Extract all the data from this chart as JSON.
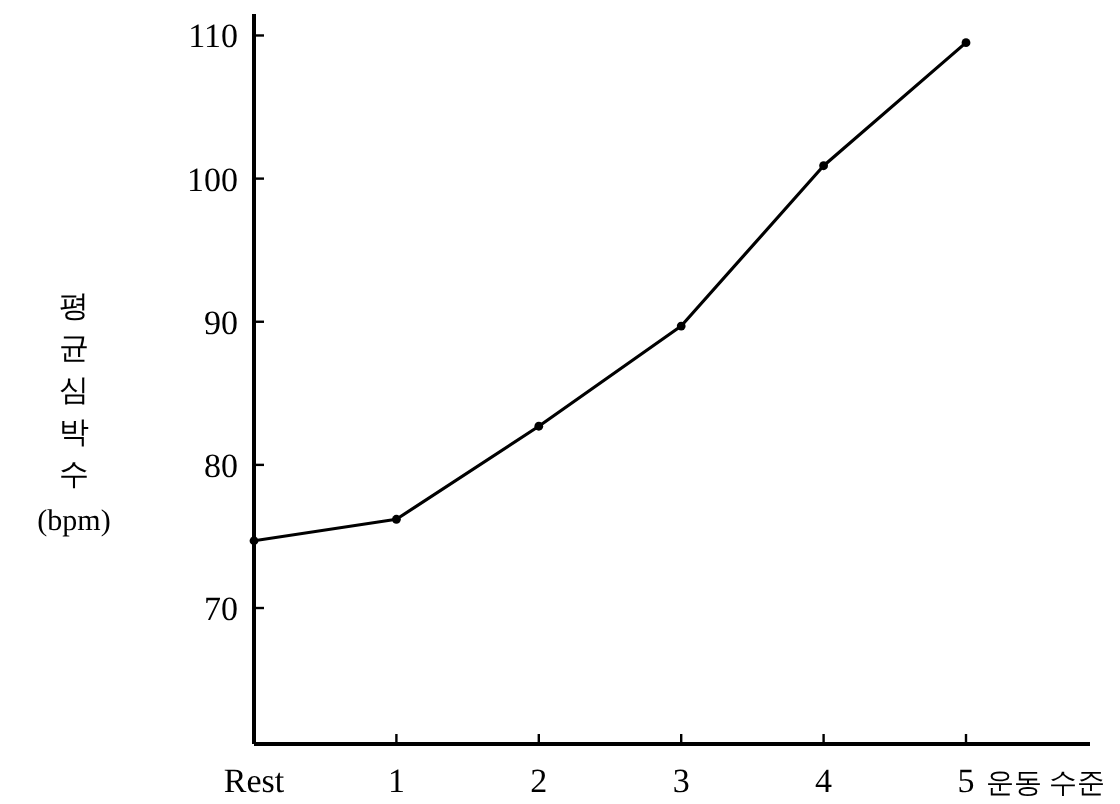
{
  "chart_data": {
    "type": "line",
    "xlabel": "운동 수준",
    "ylabel": "평균심박수 (bpm)",
    "categories": [
      "Rest",
      "1",
      "2",
      "3",
      "4",
      "5"
    ],
    "values": [
      74.7,
      76.2,
      82.7,
      89.7,
      100.9,
      109.5
    ],
    "color": "#000000",
    "marker": "circle",
    "line_style": "solid",
    "ylim": [
      60.5,
      111.5
    ],
    "yticks": [
      70,
      80,
      90,
      100,
      110
    ],
    "grid": false
  }
}
